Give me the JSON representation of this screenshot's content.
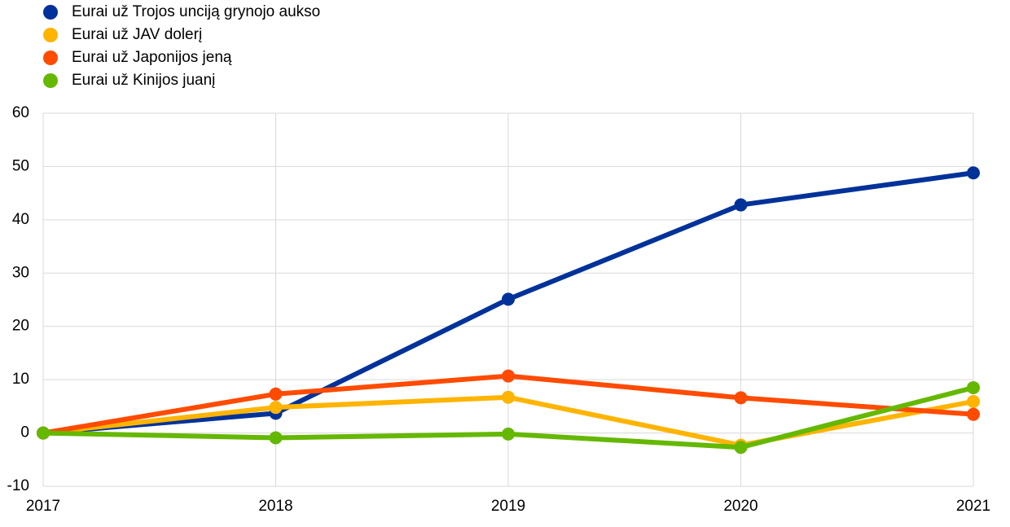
{
  "chart_data": {
    "type": "line",
    "x": [
      2017,
      2018,
      2019,
      2020,
      2021
    ],
    "xlim": [
      2017,
      2021
    ],
    "xticks": [
      2017,
      2018,
      2019,
      2020,
      2021
    ],
    "ylim": [
      -10,
      60
    ],
    "yticks": [
      -10,
      0,
      10,
      20,
      30,
      40,
      50,
      60
    ],
    "grid": true,
    "legend": "top-left",
    "series": [
      {
        "name": "Eurai už Trojos unciją grynojo aukso",
        "color": "#003299",
        "values": [
          0,
          3.7,
          25.1,
          42.8,
          48.8
        ]
      },
      {
        "name": "Eurai už JAV dolerį",
        "color": "#ffb400",
        "values": [
          0,
          4.8,
          6.7,
          -2.3,
          5.9
        ]
      },
      {
        "name": "Eurai už Japonijos jeną",
        "color": "#ff4b00",
        "values": [
          0,
          7.3,
          10.7,
          6.6,
          3.5
        ]
      },
      {
        "name": "Eurai už Kinijos juanį",
        "color": "#65b800",
        "values": [
          0,
          -0.9,
          -0.2,
          -2.7,
          8.5
        ]
      }
    ]
  }
}
